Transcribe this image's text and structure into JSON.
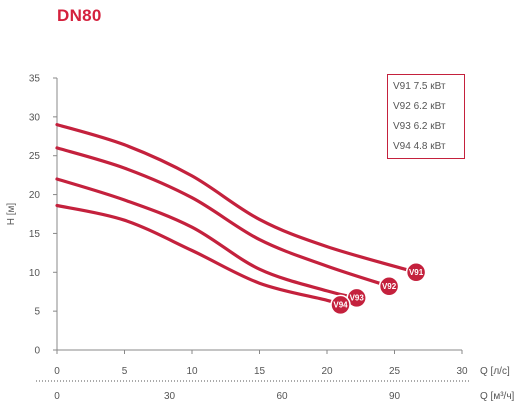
{
  "page": {
    "title": "DN80"
  },
  "colors": {
    "accent": "#d4213d",
    "curve": "#c4213d",
    "text": "#555555"
  },
  "chart_data": {
    "type": "line",
    "title": "DN80",
    "ylabel": "H [м]",
    "xlabel": "Q [л/с]",
    "xlabel_secondary": "Q [м³/ч]",
    "xlim": [
      0,
      30
    ],
    "ylim": [
      0,
      35
    ],
    "x_ticks": [
      0,
      5,
      10,
      15,
      20,
      25,
      30
    ],
    "y_ticks": [
      0,
      5,
      10,
      15,
      20,
      25,
      30,
      35
    ],
    "x_secondary_ticks": [
      0,
      30,
      60,
      90
    ],
    "x_secondary_unit_factor": 3.6,
    "grid": false,
    "legend_position": "top-right",
    "legend": [
      "V91 7.5 кВт",
      "V92 6.2 кВт",
      "V93 6.2 кВт",
      "V94 4.8 кВт"
    ],
    "series": [
      {
        "name": "V91",
        "x": [
          0,
          5,
          10,
          15,
          20,
          26.6
        ],
        "y": [
          29,
          26.4,
          22.4,
          16.8,
          13.3,
          10
        ]
      },
      {
        "name": "V92",
        "x": [
          0,
          5,
          10,
          15,
          20,
          24.6
        ],
        "y": [
          26,
          23.4,
          19.6,
          14.2,
          10.8,
          8.2
        ]
      },
      {
        "name": "V93",
        "x": [
          0,
          5,
          10,
          15,
          20,
          22.2
        ],
        "y": [
          22,
          19.3,
          15.8,
          10.4,
          7.6,
          6.7
        ]
      },
      {
        "name": "V94",
        "x": [
          0,
          5,
          10,
          15,
          20,
          21.0
        ],
        "y": [
          18.6,
          16.7,
          12.8,
          8.6,
          6.4,
          5.8
        ]
      }
    ]
  }
}
